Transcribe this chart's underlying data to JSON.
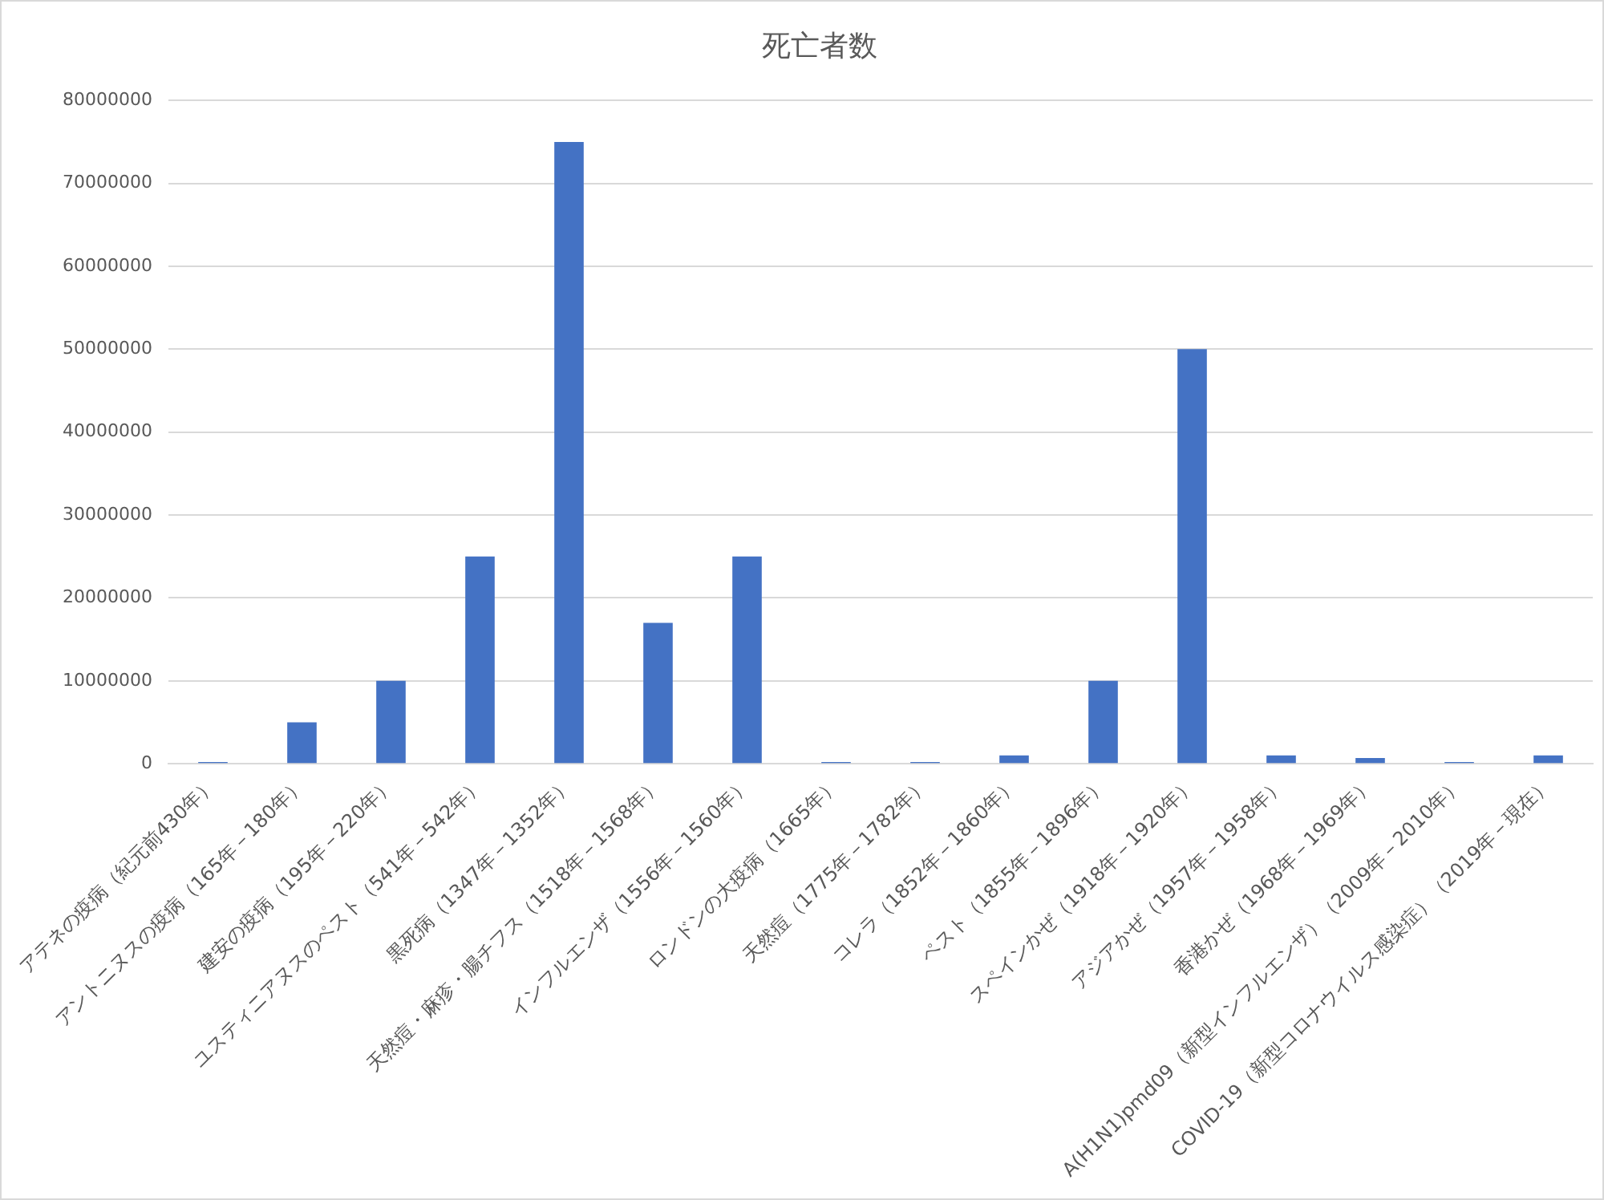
{
  "chart_data": {
    "type": "bar",
    "title": "死亡者数",
    "categories": [
      "アテネの疫病（紀元前430年）",
      "アントニヌスの疫病（165年－180年）",
      "建安の疫病（195年－220年）",
      "ユスティニアヌスのペスト（541年－542年）",
      "黒死病（1347年－1352年）",
      "天然痘・麻疹・腸チフス（1518年－1568年）",
      "インフルエンザ（1556年－1560年）",
      "ロンドンの大疫病（1665年）",
      "天然痘（1775年－1782年）",
      "コレラ（1852年－1860年）",
      "ペスト（1855年－1896年）",
      "スペインかぜ（1918年－1920年）",
      "アジアかぜ（1957年－1958年）",
      "香港かぜ（1968年－1969年）",
      "A(H1N1)pmd09（新型インフルエンザ）（2009年－2010年）",
      "COVID-19（新型コロナウイルス感染症）（2019年－現在）"
    ],
    "values": [
      200000,
      5000000,
      10000000,
      25000000,
      75000000,
      17000000,
      25000000,
      200000,
      200000,
      1000000,
      10000000,
      50000000,
      1000000,
      700000,
      200000,
      1000000
    ],
    "color": "#4472c4",
    "ylim": [
      0,
      80000000
    ],
    "yticks": [
      0,
      10000000,
      20000000,
      30000000,
      40000000,
      50000000,
      60000000,
      70000000,
      80000000
    ],
    "grid": "y"
  }
}
